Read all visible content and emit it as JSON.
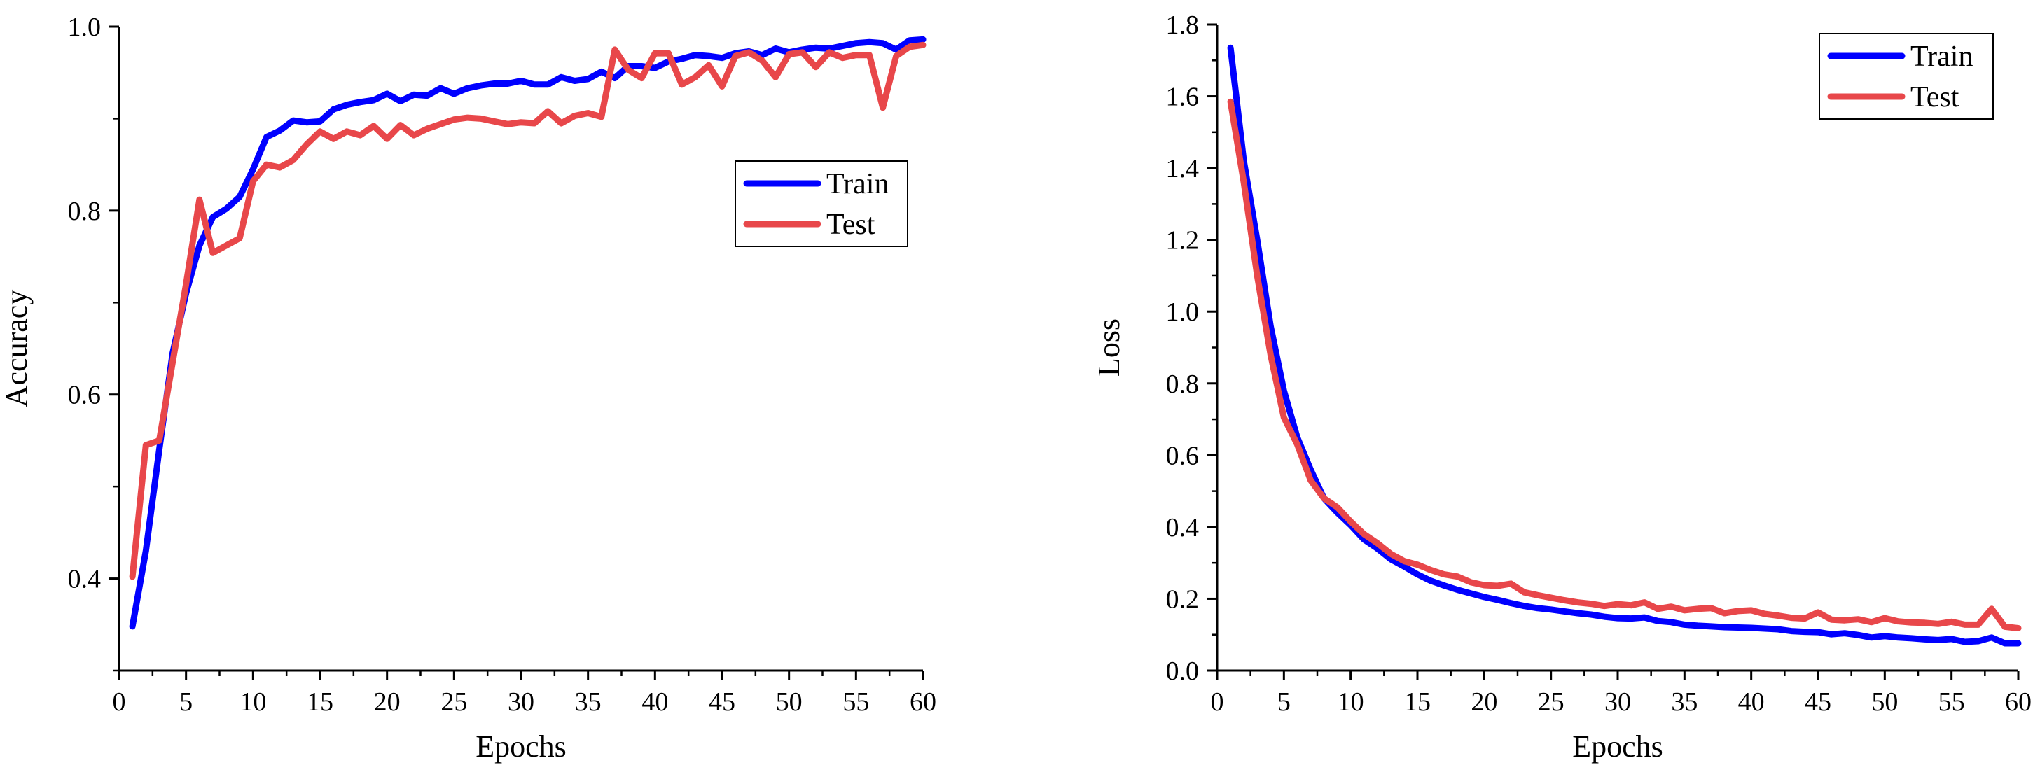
{
  "chart_data": [
    {
      "type": "line",
      "title": "",
      "xlabel": "Epochs",
      "ylabel": "Accuracy",
      "xlim": [
        0,
        60
      ],
      "ylim": [
        0.3,
        1.0
      ],
      "xticks": [
        "0",
        "5",
        "10",
        "15",
        "20",
        "25",
        "30",
        "35",
        "40",
        "45",
        "50",
        "55",
        "60"
      ],
      "yticks": [
        "0.4",
        "0.6",
        "0.8",
        "1.0"
      ],
      "legend_position": "center-right",
      "grid": false,
      "x": [
        1,
        2,
        3,
        4,
        5,
        6,
        7,
        8,
        9,
        10,
        11,
        12,
        13,
        14,
        15,
        16,
        17,
        18,
        19,
        20,
        21,
        22,
        23,
        24,
        25,
        26,
        27,
        28,
        29,
        30,
        31,
        32,
        33,
        34,
        35,
        36,
        37,
        38,
        39,
        40,
        41,
        42,
        43,
        44,
        45,
        46,
        47,
        48,
        49,
        50,
        51,
        52,
        53,
        54,
        55,
        56,
        57,
        58,
        59,
        60
      ],
      "series": [
        {
          "name": "Train",
          "color": "#0000ff",
          "values": [
            0.348,
            0.43,
            0.54,
            0.645,
            0.71,
            0.762,
            0.793,
            0.802,
            0.815,
            0.845,
            0.88,
            0.887,
            0.898,
            0.896,
            0.897,
            0.91,
            0.915,
            0.918,
            0.92,
            0.927,
            0.919,
            0.926,
            0.925,
            0.933,
            0.927,
            0.933,
            0.936,
            0.938,
            0.938,
            0.941,
            0.937,
            0.937,
            0.945,
            0.941,
            0.943,
            0.951,
            0.944,
            0.957,
            0.957,
            0.955,
            0.962,
            0.965,
            0.969,
            0.968,
            0.966,
            0.971,
            0.973,
            0.969,
            0.976,
            0.972,
            0.975,
            0.977,
            0.976,
            0.979,
            0.982,
            0.983,
            0.982,
            0.975,
            0.985,
            0.986
          ]
        },
        {
          "name": "Test",
          "color": "#e8474a",
          "values": [
            0.402,
            0.545,
            0.55,
            0.635,
            0.72,
            0.812,
            0.754,
            0.762,
            0.77,
            0.832,
            0.85,
            0.847,
            0.855,
            0.872,
            0.886,
            0.878,
            0.886,
            0.882,
            0.892,
            0.878,
            0.893,
            0.882,
            0.889,
            0.894,
            0.899,
            0.901,
            0.9,
            0.897,
            0.894,
            0.896,
            0.895,
            0.908,
            0.895,
            0.903,
            0.906,
            0.902,
            0.975,
            0.953,
            0.944,
            0.971,
            0.971,
            0.937,
            0.945,
            0.958,
            0.935,
            0.968,
            0.972,
            0.963,
            0.945,
            0.97,
            0.972,
            0.956,
            0.972,
            0.966,
            0.969,
            0.969,
            0.912,
            0.968,
            0.978,
            0.98
          ]
        }
      ]
    },
    {
      "type": "line",
      "title": "",
      "xlabel": "Epochs",
      "ylabel": "Loss",
      "xlim": [
        0,
        60
      ],
      "ylim": [
        0.0,
        1.8
      ],
      "xticks": [
        "0",
        "5",
        "10",
        "15",
        "20",
        "25",
        "30",
        "35",
        "40",
        "45",
        "50",
        "55",
        "60"
      ],
      "yticks": [
        "0.0",
        "0.2",
        "0.4",
        "0.6",
        "0.8",
        "1.0",
        "1.2",
        "1.4",
        "1.6",
        "1.8"
      ],
      "legend_position": "top-right",
      "grid": false,
      "x": [
        1,
        2,
        3,
        4,
        5,
        6,
        7,
        8,
        9,
        10,
        11,
        12,
        13,
        14,
        15,
        16,
        17,
        18,
        19,
        20,
        21,
        22,
        23,
        24,
        25,
        26,
        27,
        28,
        29,
        30,
        31,
        32,
        33,
        34,
        35,
        36,
        37,
        38,
        39,
        40,
        41,
        42,
        43,
        44,
        45,
        46,
        47,
        48,
        49,
        50,
        51,
        52,
        53,
        54,
        55,
        56,
        57,
        58,
        59,
        60
      ],
      "series": [
        {
          "name": "Train",
          "color": "#0000ff",
          "values": [
            1.735,
            1.42,
            1.2,
            0.96,
            0.78,
            0.65,
            0.56,
            0.48,
            0.44,
            0.405,
            0.365,
            0.34,
            0.31,
            0.29,
            0.268,
            0.25,
            0.237,
            0.225,
            0.215,
            0.205,
            0.197,
            0.188,
            0.18,
            0.174,
            0.17,
            0.165,
            0.16,
            0.156,
            0.15,
            0.146,
            0.145,
            0.148,
            0.138,
            0.135,
            0.128,
            0.125,
            0.123,
            0.121,
            0.12,
            0.119,
            0.117,
            0.115,
            0.11,
            0.108,
            0.107,
            0.101,
            0.104,
            0.099,
            0.092,
            0.096,
            0.092,
            0.09,
            0.087,
            0.085,
            0.088,
            0.08,
            0.082,
            0.092,
            0.076,
            0.076
          ]
        },
        {
          "name": "Test",
          "color": "#e8474a",
          "values": [
            1.585,
            1.36,
            1.1,
            0.88,
            0.705,
            0.63,
            0.53,
            0.48,
            0.455,
            0.415,
            0.38,
            0.355,
            0.325,
            0.305,
            0.295,
            0.28,
            0.268,
            0.262,
            0.246,
            0.238,
            0.236,
            0.242,
            0.218,
            0.21,
            0.203,
            0.196,
            0.19,
            0.186,
            0.18,
            0.185,
            0.182,
            0.19,
            0.172,
            0.178,
            0.168,
            0.172,
            0.174,
            0.16,
            0.166,
            0.168,
            0.158,
            0.153,
            0.147,
            0.145,
            0.162,
            0.142,
            0.14,
            0.143,
            0.135,
            0.146,
            0.137,
            0.134,
            0.133,
            0.13,
            0.136,
            0.128,
            0.128,
            0.172,
            0.122,
            0.118
          ]
        }
      ]
    }
  ]
}
